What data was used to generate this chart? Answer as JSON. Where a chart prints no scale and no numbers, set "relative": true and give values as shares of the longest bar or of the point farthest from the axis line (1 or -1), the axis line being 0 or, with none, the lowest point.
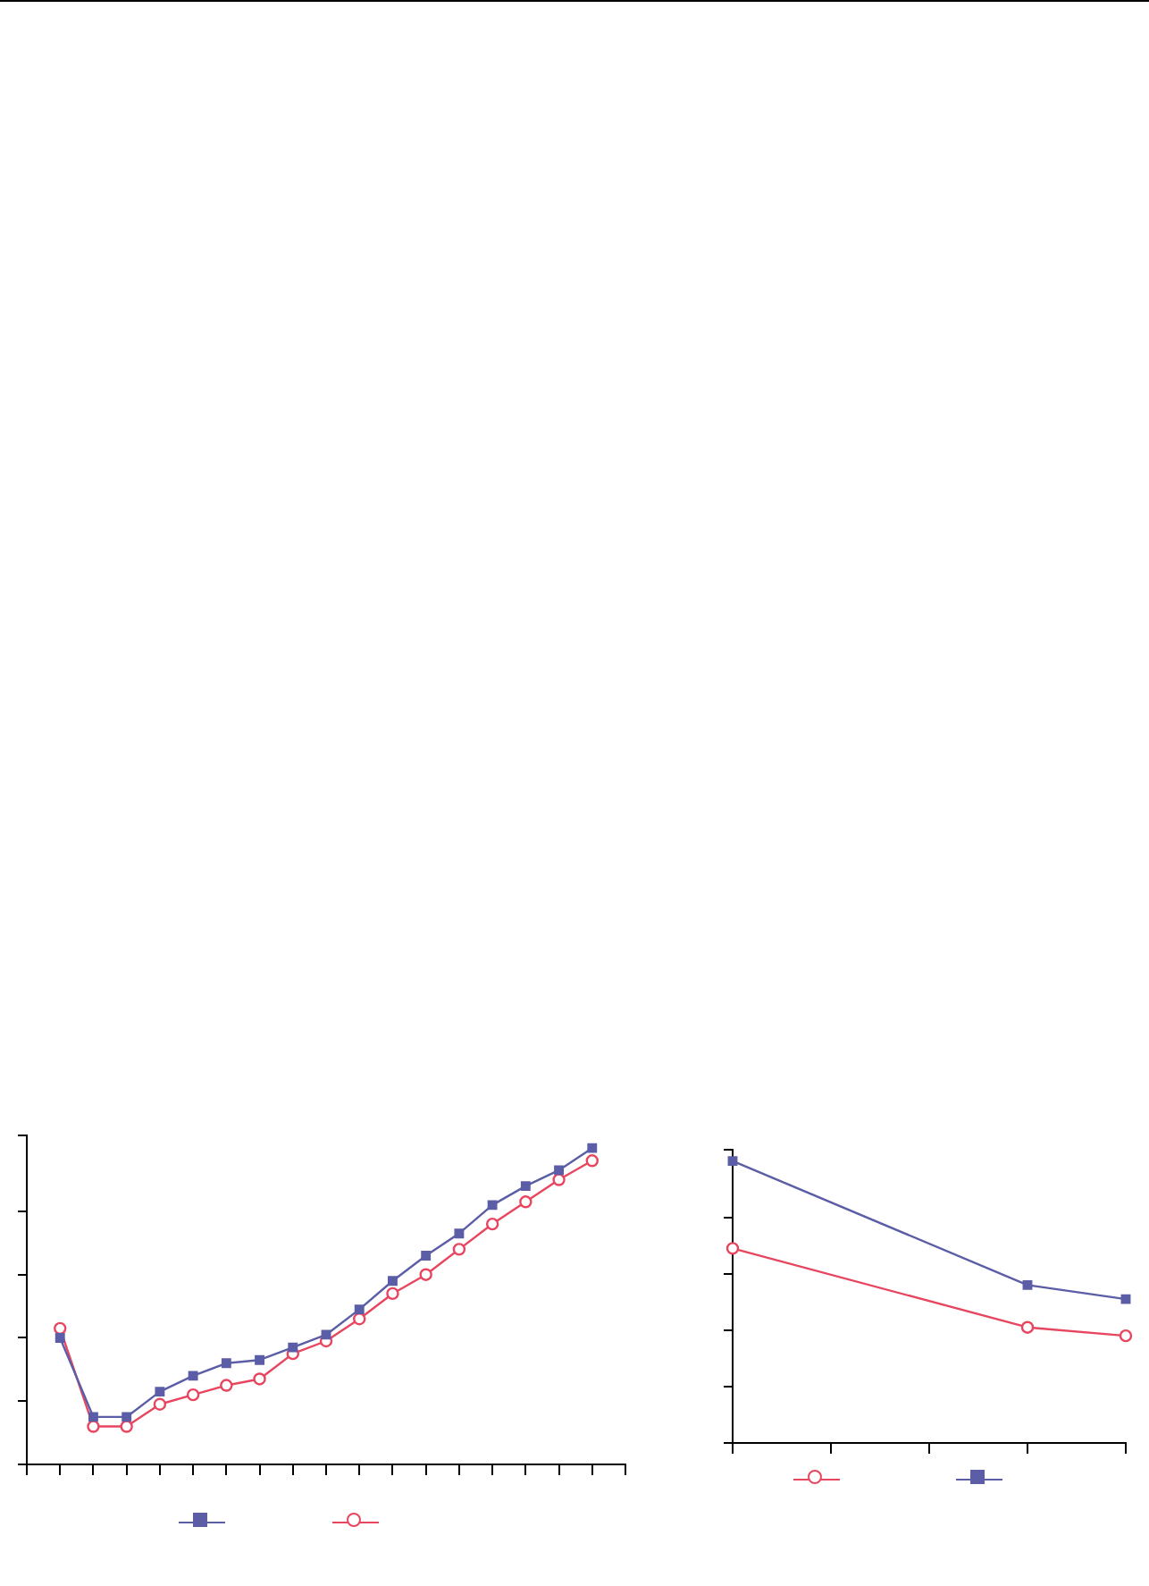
{
  "chart_data": [
    {
      "type": "line",
      "relative": true,
      "tick_labels": false,
      "grid": false,
      "categories": [
        null,
        null,
        null,
        null,
        null,
        null,
        null,
        null,
        null,
        null,
        null,
        null,
        null,
        null,
        null,
        null,
        null,
        null,
        null
      ],
      "series": [
        {
          "color": "#5b5ea6",
          "marker": "square",
          "values": [
            null,
            0.4,
            0.15,
            0.15,
            0.23,
            0.28,
            0.32,
            0.33,
            0.37,
            0.41,
            0.49,
            0.58,
            0.66,
            0.73,
            0.82,
            0.88,
            0.93,
            1,
            null
          ]
        },
        {
          "color": "#e8455f",
          "marker": "circle",
          "values": [
            null,
            0.43,
            0.12,
            0.12,
            0.19,
            0.22,
            0.25,
            0.27,
            0.35,
            0.39,
            0.46,
            0.54,
            0.6,
            0.68,
            0.76,
            0.83,
            0.9,
            0.96,
            null
          ]
        }
      ]
    },
    {
      "type": "line",
      "relative": true,
      "tick_labels": false,
      "grid": false,
      "categories": [
        null,
        null,
        null,
        null,
        null
      ],
      "series": [
        {
          "color": "#e8455f",
          "marker": "circle",
          "values": [
            0.69,
            null,
            null,
            0.41,
            0.38
          ]
        },
        {
          "color": "#5b5ea6",
          "marker": "square",
          "values": [
            1,
            null,
            null,
            0.56,
            0.51
          ]
        }
      ]
    }
  ]
}
